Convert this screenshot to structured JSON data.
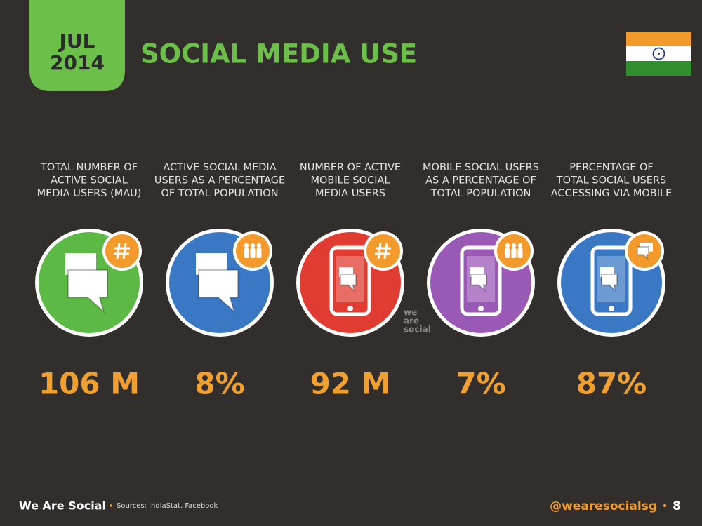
{
  "header": {
    "date": [
      "JUL",
      "2014"
    ],
    "title": "SOCIAL MEDIA USE"
  },
  "stats": [
    {
      "label": [
        "TOTAL NUMBER OF",
        "ACTIVE SOCIAL",
        "MEDIA USERS (MAU)"
      ],
      "value": "106 M"
    },
    {
      "label": [
        "ACTIVE SOCIAL MEDIA",
        "USERS AS A PERCENTAGE",
        "OF TOTAL POPULATION"
      ],
      "value": "8%"
    },
    {
      "label": [
        "NUMBER OF ACTIVE",
        "MOBILE SOCIAL",
        "MEDIA USERS"
      ],
      "value": "92 M"
    },
    {
      "label": [
        "MOBILE SOCIAL USERS",
        "AS A PERCENTAGE OF",
        "TOTAL POPULATION"
      ],
      "value": "7%"
    },
    {
      "label": [
        "PERCENTAGE OF",
        "TOTAL SOCIAL USERS",
        "ACCESSING VIA MOBILE"
      ],
      "value": "87%"
    }
  ],
  "watermark": [
    "we",
    "are",
    "social"
  ],
  "footer": {
    "brand": "We Are Social",
    "sources": "Sources: IndiaStat, Facebook",
    "handle": "@wearesocialsg",
    "page": "8"
  }
}
